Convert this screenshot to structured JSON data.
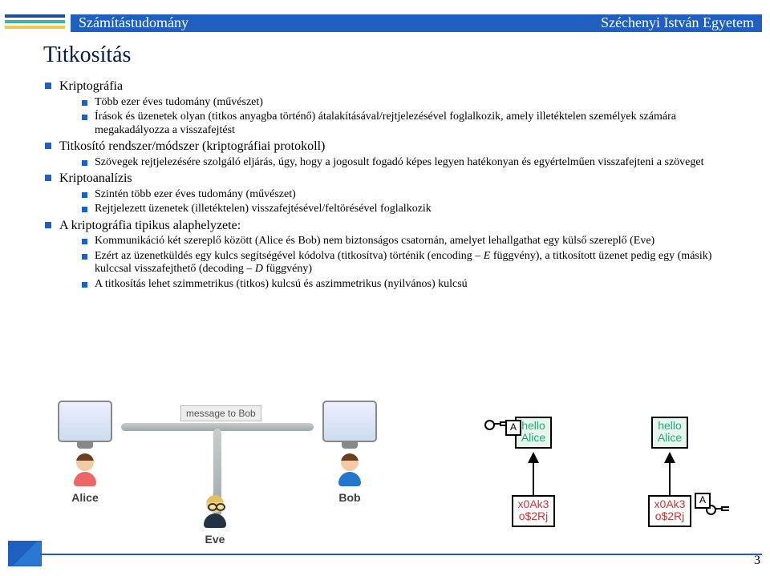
{
  "header": {
    "left": "Számítástudomány",
    "right": "Széchenyi István Egyetem"
  },
  "title": "Titkosítás",
  "bullets": [
    {
      "text": "Kriptográfia",
      "children": [
        {
          "text": "Több ezer éves tudomány (művészet)"
        },
        {
          "text": "Írások és üzenetek olyan (titkos anyagba történő) átalakításával/rejtjelezésével foglalkozik, amely illetéktelen személyek számára megakadályozza a visszafejtést"
        }
      ]
    },
    {
      "text": "Titkosító rendszer/módszer (kriptográfiai protokoll)",
      "children": [
        {
          "text": "Szövegek rejtjelezésére szolgáló eljárás, úgy, hogy a jogosult fogadó képes legyen hatékonyan és egyértelműen visszafejteni a szöveget"
        }
      ]
    },
    {
      "text": "Kriptoanalízis",
      "children": [
        {
          "text": "Szintén több ezer éves tudomány (művészet)"
        },
        {
          "text": "Rejtjelezett üzenetek (illetéktelen) visszafejtésével/feltörésével foglalkozik"
        }
      ]
    },
    {
      "text": "A kriptográfia tipikus alaphelyzete:",
      "children": [
        {
          "text": "Kommunikáció két szereplő között (Alice és Bob) nem biztonságos csatornán, amelyet lehallgathat egy külső szereplő (Eve)"
        },
        {
          "text": "Ezért az üzenetküldés egy kulcs segítségével kódolva (titkosítva) történik (encoding – E függvény), a titkosított üzenet pedig egy (másik) kulccsal visszafejthető (decoding – D függvény)"
        },
        {
          "text": "A titkosítás lehet szimmetrikus (titkos) kulcsú és aszimmetrikus (nyilvános) kulcsú"
        }
      ]
    }
  ],
  "diagram": {
    "message_label": "message to Bob",
    "alice": "Alice",
    "bob": "Bob",
    "eve": "Eve"
  },
  "keydiag": {
    "plaintext": "hello\nAlice",
    "ciphertext": "x0Ak3\no$2Rj",
    "key_label": "A"
  },
  "page": "3",
  "italic_spans": [
    "E",
    "D"
  ],
  "colors": {
    "accent": "#1f5fbf",
    "title": "#0a1b4a",
    "stripe_teal": "#3fb5a3",
    "stripe_yellow": "#f4c84a",
    "plain_text": "#2a7",
    "cipher_text": "#c33"
  }
}
